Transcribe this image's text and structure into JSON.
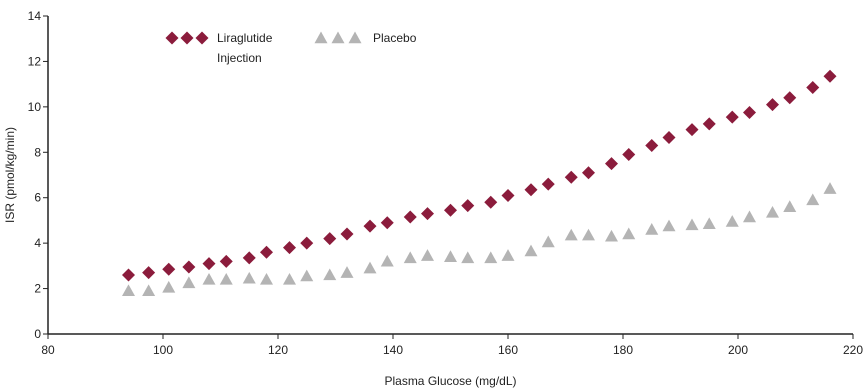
{
  "chart_data": {
    "type": "scatter",
    "xlabel": "Plasma Glucose (mg/dL)",
    "ylabel": "ISR (pmol/kg/min)",
    "xlim": [
      80,
      220
    ],
    "ylim": [
      0,
      14
    ],
    "xticks": [
      80,
      100,
      120,
      140,
      160,
      180,
      200,
      220
    ],
    "yticks": [
      0,
      2,
      4,
      6,
      8,
      10,
      12,
      14
    ],
    "grid": false,
    "legend": {
      "placement": "top-left"
    },
    "series": [
      {
        "name_lines": [
          "Liraglutide",
          "Injection"
        ],
        "marker": "diamond",
        "color": "#8b1c3c",
        "x": [
          94,
          97.5,
          101,
          104.5,
          108,
          111,
          115,
          118,
          122,
          125,
          129,
          132,
          136,
          139,
          143,
          146,
          150,
          153,
          157,
          160,
          164,
          167,
          171,
          174,
          178,
          181,
          185,
          188,
          192,
          195,
          199,
          202,
          206,
          209,
          213,
          216
        ],
        "y": [
          2.6,
          2.7,
          2.85,
          2.95,
          3.1,
          3.2,
          3.35,
          3.6,
          3.8,
          4.0,
          4.2,
          4.4,
          4.75,
          4.9,
          5.15,
          5.3,
          5.45,
          5.65,
          5.8,
          6.1,
          6.35,
          6.6,
          6.9,
          7.1,
          7.5,
          7.9,
          8.3,
          8.65,
          9.0,
          9.25,
          9.55,
          9.75,
          10.1,
          10.4,
          10.85,
          11.35
        ]
      },
      {
        "name_lines": [
          "Placebo"
        ],
        "marker": "triangle",
        "color": "#b4b4b4",
        "x": [
          94,
          97.5,
          101,
          104.5,
          108,
          111,
          115,
          118,
          122,
          125,
          129,
          132,
          136,
          139,
          143,
          146,
          150,
          153,
          157,
          160,
          164,
          167,
          171,
          174,
          178,
          181,
          185,
          188,
          192,
          195,
          199,
          202,
          206,
          209,
          213,
          216
        ],
        "y": [
          1.9,
          1.9,
          2.05,
          2.25,
          2.4,
          2.4,
          2.45,
          2.4,
          2.4,
          2.55,
          2.6,
          2.7,
          2.9,
          3.2,
          3.35,
          3.45,
          3.4,
          3.35,
          3.35,
          3.45,
          3.65,
          4.05,
          4.35,
          4.35,
          4.3,
          4.4,
          4.6,
          4.75,
          4.8,
          4.85,
          4.95,
          5.15,
          5.35,
          5.6,
          5.9,
          6.4
        ]
      }
    ]
  }
}
